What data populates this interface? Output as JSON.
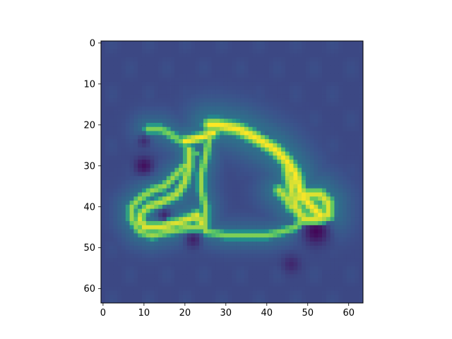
{
  "chart_data": {
    "type": "heatmap",
    "title": "",
    "xlabel": "",
    "ylabel": "",
    "grid_size": [
      64,
      64
    ],
    "xlim": [
      -0.5,
      63.5
    ],
    "ylim": [
      63.5,
      -0.5
    ],
    "x_ticks": [
      0,
      10,
      20,
      30,
      40,
      50,
      60
    ],
    "y_ticks": [
      0,
      10,
      20,
      30,
      40,
      50,
      60
    ],
    "x_tick_labels": [
      "0",
      "10",
      "20",
      "30",
      "40",
      "50",
      "60"
    ],
    "y_tick_labels": [
      "0",
      "10",
      "20",
      "30",
      "40",
      "50",
      "60"
    ],
    "colormap": "viridis",
    "colormap_stops": [
      "#440154",
      "#3b528b",
      "#21918c",
      "#5ec962",
      "#fde725"
    ],
    "background_value": 0.22,
    "colorbar": false,
    "grid": false,
    "strokes": [
      {
        "points": [
          [
            26,
            20
          ],
          [
            28,
            20
          ],
          [
            33,
            21
          ],
          [
            37,
            23
          ],
          [
            42,
            26
          ],
          [
            45,
            29
          ],
          [
            47,
            32
          ],
          [
            48,
            36
          ],
          [
            50,
            39
          ],
          [
            52,
            41
          ],
          [
            53,
            42
          ]
        ],
        "intensity": 1.0,
        "width": 1.6
      },
      {
        "points": [
          [
            20,
            24
          ],
          [
            24,
            23
          ],
          [
            27,
            22
          ]
        ],
        "intensity": 1.0,
        "width": 1.2
      },
      {
        "points": [
          [
            45,
            30
          ],
          [
            46,
            35
          ],
          [
            47,
            40
          ],
          [
            49,
            43
          ],
          [
            52,
            43
          ],
          [
            55,
            42
          ],
          [
            55,
            39
          ],
          [
            53,
            37
          ],
          [
            50,
            37
          ],
          [
            48,
            38
          ]
        ],
        "intensity": 0.95,
        "width": 1.5
      },
      {
        "points": [
          [
            11,
            21
          ],
          [
            14,
            21
          ],
          [
            16,
            22
          ],
          [
            19,
            24
          ]
        ],
        "intensity": 0.8,
        "width": 1.1
      },
      {
        "points": [
          [
            21,
            26
          ],
          [
            21,
            30
          ],
          [
            20,
            34
          ],
          [
            18,
            37
          ],
          [
            14,
            39
          ],
          [
            11,
            40
          ],
          [
            9,
            42
          ]
        ],
        "intensity": 0.9,
        "width": 1.2
      },
      {
        "points": [
          [
            9,
            43
          ],
          [
            10,
            45
          ],
          [
            14,
            45
          ],
          [
            18,
            44
          ],
          [
            21,
            43
          ],
          [
            23,
            42
          ],
          [
            24,
            44
          ]
        ],
        "intensity": 0.95,
        "width": 1.3
      },
      {
        "points": [
          [
            20,
            30
          ],
          [
            17,
            33
          ],
          [
            15,
            35
          ],
          [
            12,
            36
          ],
          [
            9,
            38
          ],
          [
            7,
            40
          ],
          [
            7,
            43
          ],
          [
            9,
            46
          ],
          [
            12,
            47
          ],
          [
            16,
            46
          ],
          [
            21,
            45
          ],
          [
            24,
            45
          ]
        ],
        "intensity": 0.85,
        "width": 1.1
      },
      {
        "points": [
          [
            26,
            23
          ],
          [
            25,
            28
          ],
          [
            24,
            32
          ],
          [
            24,
            36
          ],
          [
            25,
            40
          ],
          [
            25,
            44
          ],
          [
            25,
            46
          ]
        ],
        "intensity": 0.85,
        "width": 1.0
      },
      {
        "points": [
          [
            21,
            27
          ],
          [
            23,
            27
          ]
        ],
        "intensity": 0.7,
        "width": 0.8
      },
      {
        "points": [
          [
            25,
            46
          ],
          [
            30,
            47
          ],
          [
            35,
            47
          ],
          [
            40,
            47
          ],
          [
            44,
            46
          ],
          [
            47,
            45
          ],
          [
            48,
            44
          ]
        ],
        "intensity": 0.8,
        "width": 1.0
      },
      {
        "points": [
          [
            43,
            36
          ],
          [
            45,
            38
          ],
          [
            46,
            40
          ]
        ],
        "intensity": 0.9,
        "width": 1.4
      }
    ],
    "dark_spots": [
      {
        "center": [
          10,
          30
        ],
        "radius": 1.5,
        "value": 0.05
      },
      {
        "center": [
          52,
          46
        ],
        "radius": 2.5,
        "value": 0.02
      },
      {
        "center": [
          39,
          24
        ],
        "radius": 1.2,
        "value": 0.1
      },
      {
        "center": [
          22,
          48
        ],
        "radius": 1.5,
        "value": 0.1
      },
      {
        "center": [
          15,
          42
        ],
        "radius": 1.2,
        "value": 0.12
      },
      {
        "center": [
          46,
          54
        ],
        "radius": 1.5,
        "value": 0.12
      },
      {
        "center": [
          10,
          24
        ],
        "radius": 1.2,
        "value": 0.14
      }
    ]
  }
}
